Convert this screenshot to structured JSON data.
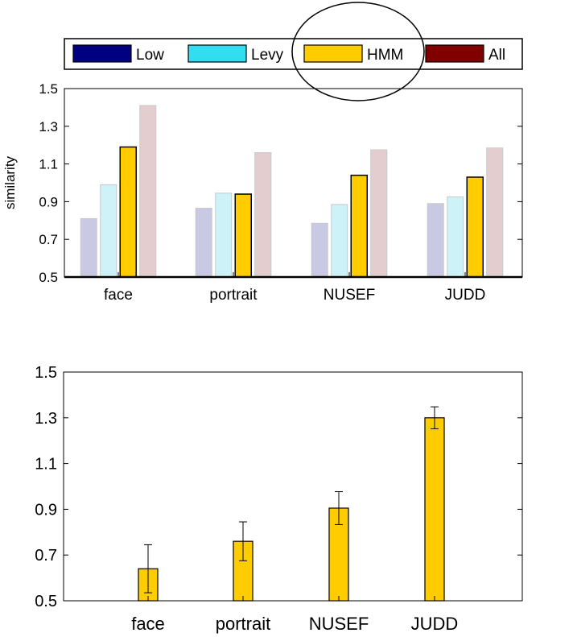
{
  "chart_data": [
    {
      "type": "bar",
      "title": "",
      "xlabel": "",
      "ylabel": "similarity",
      "ylim": [
        0.5,
        1.5
      ],
      "yticks": [
        0.5,
        0.7,
        0.9,
        1.1,
        1.3,
        1.5
      ],
      "ytick_labels": [
        "0.5",
        "0.7",
        "0.9",
        "1.1",
        "1.3",
        "1.5"
      ],
      "categories": [
        "face",
        "portrait",
        "NUSEF",
        "JUDD"
      ],
      "legend_position": "top",
      "grid": false,
      "highlight": {
        "series": "HMM",
        "shape": "ellipse"
      },
      "series": [
        {
          "name": "Low",
          "values": [
            0.81,
            0.865,
            0.785,
            0.89
          ],
          "color": "#000080",
          "faded_color": "#c9c9e3"
        },
        {
          "name": "Levy",
          "values": [
            0.99,
            0.945,
            0.885,
            0.925
          ],
          "color": "#33ddf0",
          "faded_color": "#cdf3f8"
        },
        {
          "name": "HMM",
          "values": [
            1.19,
            0.94,
            1.04,
            1.03
          ],
          "color": "#ffcc00",
          "faded_color": "#ffcc00"
        },
        {
          "name": "All",
          "values": [
            1.41,
            1.16,
            1.175,
            1.185
          ],
          "color": "#800000",
          "faded_color": "#e3cdcf"
        }
      ]
    },
    {
      "type": "bar",
      "title": "",
      "xlabel": "",
      "ylabel": "",
      "ylim": [
        0.5,
        1.5
      ],
      "yticks": [
        0.5,
        0.7,
        0.9,
        1.1,
        1.3,
        1.5
      ],
      "ytick_labels": [
        "0.5",
        "0.7",
        "0.9",
        "1.1",
        "1.3",
        "1.5"
      ],
      "categories": [
        "face",
        "portrait",
        "NUSEF",
        "JUDD"
      ],
      "grid": false,
      "series": [
        {
          "name": "",
          "values": [
            0.64,
            0.76,
            0.905,
            1.3
          ],
          "error": [
            0.105,
            0.085,
            0.072,
            0.048
          ],
          "color": "#ffcc00"
        }
      ]
    }
  ]
}
